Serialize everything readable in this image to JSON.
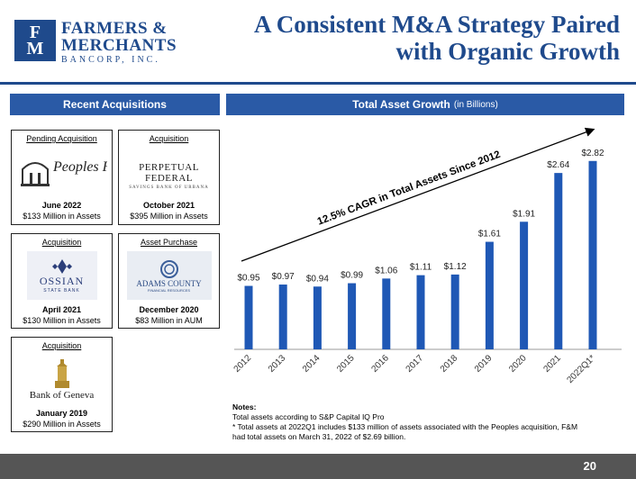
{
  "header": {
    "logo_mark_top": "F",
    "logo_mark_bottom": "M",
    "logo_line1": "FARMERS &",
    "logo_line2": "MERCHANTS",
    "logo_line3": "BANCORP, INC.",
    "title_line1": "A Consistent M&A Strategy Paired",
    "title_line2": "with Organic Growth",
    "brand_color": "#1f4a8c"
  },
  "left_panel": {
    "heading": "Recent Acquisitions",
    "cards": [
      {
        "type": "Pending Acquisition",
        "bank": "Peoples Federal",
        "date": "June 2022",
        "amount": "$133 Million in Assets"
      },
      {
        "type": "Acquisition",
        "bank": "PERPETUAL FEDERAL",
        "bank_sub": "SAVINGS BANK OF URBANA",
        "date": "October 2021",
        "amount": "$395 Million in Assets"
      },
      {
        "type": "Acquisition",
        "bank": "OSSIAN",
        "bank_sub": "STATE BANK",
        "date": "April 2021",
        "amount": "$130 Million in Assets"
      },
      {
        "type": "Asset Purchase",
        "bank": "ADAMS COUNTY",
        "bank_sub": "FINANCIAL RESOURCES",
        "date": "December 2020",
        "amount": "$83 Million in AUM"
      },
      {
        "type": "Acquisition",
        "bank": "Bank of Geneva",
        "date": "January 2019",
        "amount": "$290 Million in Assets"
      }
    ]
  },
  "chart_panel": {
    "heading": "Total Asset Growth",
    "heading_sub": "(in Billions)"
  },
  "chart_data": {
    "type": "bar",
    "title": "Total Asset Growth (in Billions)",
    "categories": [
      "2012",
      "2013",
      "2014",
      "2015",
      "2016",
      "2017",
      "2018",
      "2019",
      "2020",
      "2021",
      "2022Q1*"
    ],
    "values": [
      0.95,
      0.97,
      0.94,
      0.99,
      1.06,
      1.11,
      1.12,
      1.61,
      1.91,
      2.64,
      2.82
    ],
    "data_labels": [
      "$0.95",
      "$0.97",
      "$0.94",
      "$0.99",
      "$1.06",
      "$1.11",
      "$1.12",
      "$1.61",
      "$1.91",
      "$2.64",
      "$2.82"
    ],
    "annotation": "12.5% CAGR in Total Assets Since 2012",
    "bar_color": "#1f58b5",
    "ylim": [
      0,
      3.1
    ],
    "grid": false,
    "legend": "none"
  },
  "notes": {
    "heading": "Notes:",
    "line1": "Total assets according to S&P Capital IQ Pro",
    "line2": "* Total assets at 2022Q1 includes $133 million of assets associated with the Peoples acquisition, F&M",
    "line3": "had total assets on March 31, 2022 of $2.69 billion."
  },
  "footer": {
    "page_number": "20"
  }
}
